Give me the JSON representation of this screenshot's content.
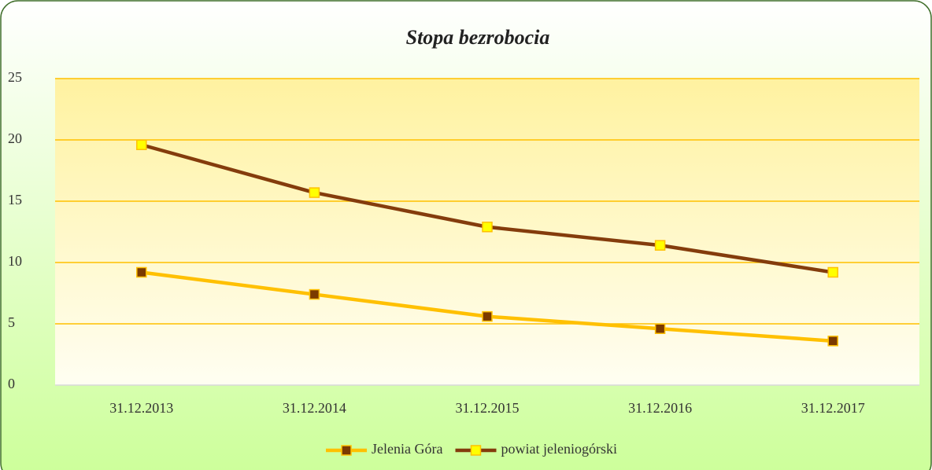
{
  "chart_data": {
    "type": "line",
    "title": "Stopa bezrobocia",
    "categories": [
      "31.12.2013",
      "31.12.2014",
      "31.12.2015",
      "31.12.2016",
      "31.12.2017"
    ],
    "series": [
      {
        "name": "Jelenia Góra",
        "color": "#ffc000",
        "marker_color": "#7b3a00",
        "values": [
          9.2,
          7.4,
          5.6,
          4.6,
          3.6
        ]
      },
      {
        "name": "powiat jeleniogórski",
        "color": "#843c0c",
        "marker_color": "#ffff00",
        "values": [
          19.6,
          15.7,
          12.9,
          11.4,
          9.2
        ]
      }
    ],
    "ylim": [
      0,
      25
    ],
    "yticks": [
      0,
      5,
      10,
      15,
      20,
      25
    ],
    "grid": true,
    "legend": "bottom"
  }
}
